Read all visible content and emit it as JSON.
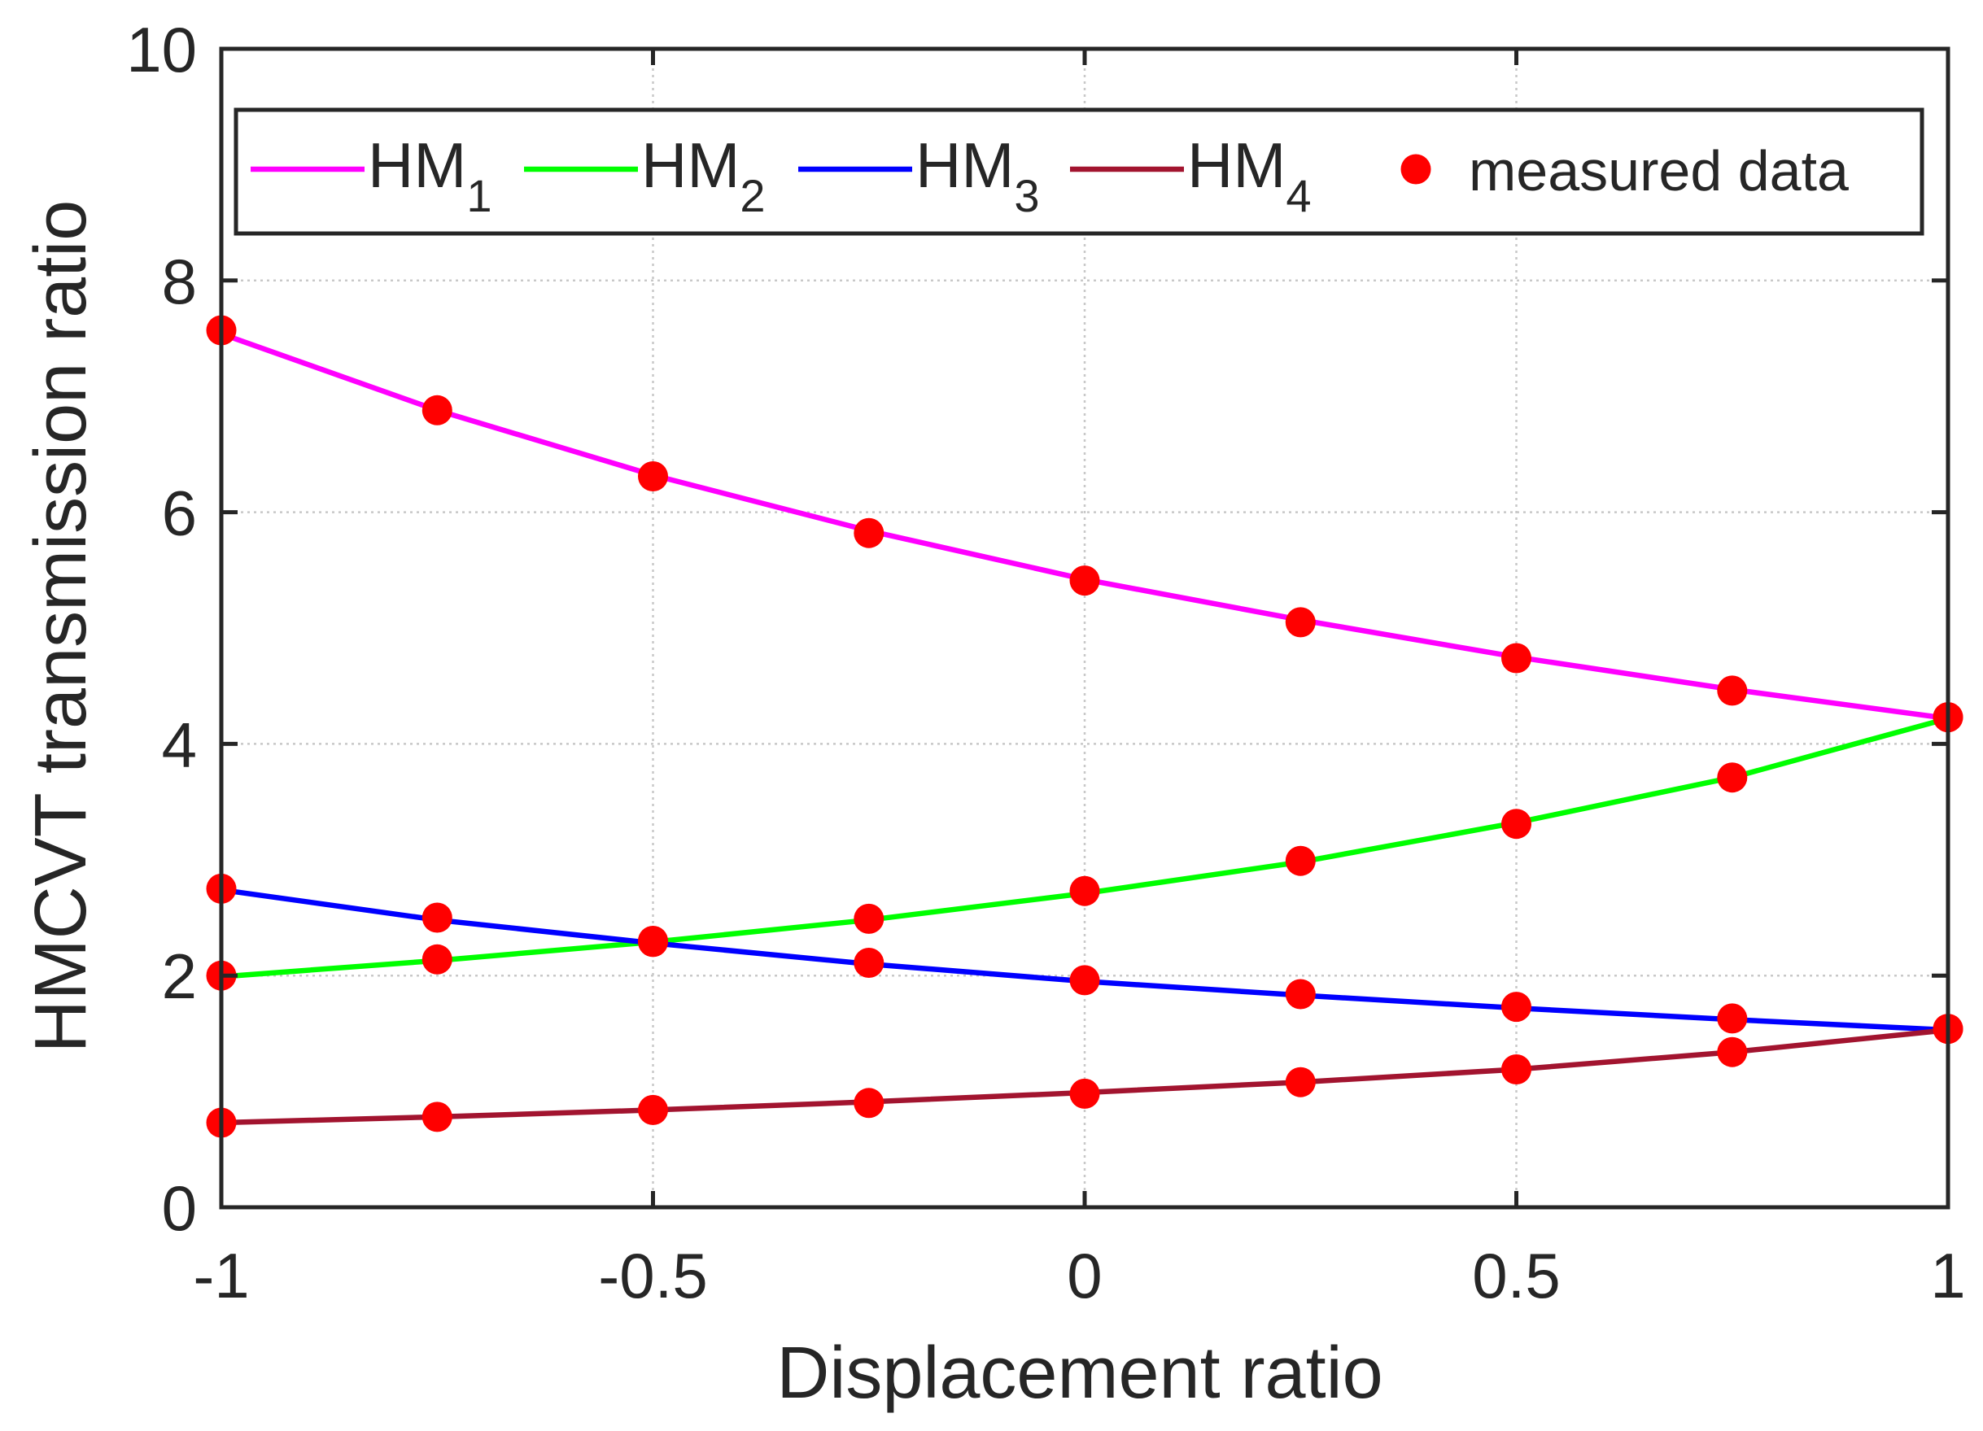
{
  "chart_data": {
    "type": "line",
    "title": "",
    "xlabel": "Displacement ratio",
    "ylabel": "HMCVT transmission ratio",
    "xlim": [
      -1,
      1
    ],
    "ylim": [
      0,
      10
    ],
    "xticks": [
      -1,
      -0.5,
      0,
      0.5,
      1
    ],
    "xtick_labels": [
      "-1",
      "-0.5",
      "0",
      "0.5",
      "1"
    ],
    "yticks": [
      0,
      2,
      4,
      6,
      8,
      10
    ],
    "ytick_labels": [
      "0",
      "2",
      "4",
      "6",
      "8",
      "10"
    ],
    "grid": true,
    "legend_location": "top",
    "x": [
      -1,
      -0.75,
      -0.5,
      -0.25,
      0,
      0.25,
      0.5,
      0.75,
      1
    ],
    "series": [
      {
        "id": "hm1",
        "name": "HM",
        "subscript": "1",
        "kind": "line",
        "color": "#ff00ff",
        "values": [
          7.54,
          6.88,
          6.32,
          5.84,
          5.42,
          5.07,
          4.75,
          4.47,
          4.22
        ]
      },
      {
        "id": "hm2",
        "name": "HM",
        "subscript": "2",
        "kind": "line",
        "color": "#00ff00",
        "values": [
          1.99,
          2.13,
          2.29,
          2.48,
          2.71,
          2.98,
          3.32,
          3.71,
          4.22
        ]
      },
      {
        "id": "hm3",
        "name": "HM",
        "subscript": "3",
        "kind": "line",
        "color": "#0000ff",
        "values": [
          2.74,
          2.48,
          2.28,
          2.1,
          1.95,
          1.83,
          1.72,
          1.62,
          1.53
        ]
      },
      {
        "id": "hm4",
        "name": "HM",
        "subscript": "4",
        "kind": "line",
        "color": "#a2142f",
        "values": [
          0.73,
          0.78,
          0.84,
          0.91,
          0.99,
          1.08,
          1.19,
          1.34,
          1.53
        ]
      },
      {
        "id": "measured",
        "name": "measured data",
        "kind": "scatter",
        "color": "#ff0000",
        "points": [
          [
            -1,
            7.57
          ],
          [
            -0.75,
            6.88
          ],
          [
            -0.5,
            6.31
          ],
          [
            -0.25,
            5.82
          ],
          [
            0,
            5.41
          ],
          [
            0.25,
            5.05
          ],
          [
            0.5,
            4.74
          ],
          [
            0.75,
            4.46
          ],
          [
            1,
            4.23
          ],
          [
            -1,
            2.0
          ],
          [
            -0.75,
            2.14
          ],
          [
            -0.5,
            2.29
          ],
          [
            -0.25,
            2.49
          ],
          [
            0,
            2.73
          ],
          [
            0.25,
            2.99
          ],
          [
            0.5,
            3.31
          ],
          [
            0.75,
            3.71
          ],
          [
            1,
            4.23
          ],
          [
            -1,
            2.75
          ],
          [
            -0.75,
            2.5
          ],
          [
            -0.5,
            2.3
          ],
          [
            -0.25,
            2.11
          ],
          [
            0,
            1.96
          ],
          [
            0.25,
            1.84
          ],
          [
            0.5,
            1.73
          ],
          [
            0.75,
            1.63
          ],
          [
            1,
            1.54
          ],
          [
            -1,
            0.73
          ],
          [
            -0.75,
            0.78
          ],
          [
            -0.5,
            0.84
          ],
          [
            -0.25,
            0.9
          ],
          [
            0,
            0.98
          ],
          [
            0.25,
            1.08
          ],
          [
            0.5,
            1.19
          ],
          [
            0.75,
            1.34
          ],
          [
            1,
            1.54
          ]
        ]
      }
    ]
  }
}
